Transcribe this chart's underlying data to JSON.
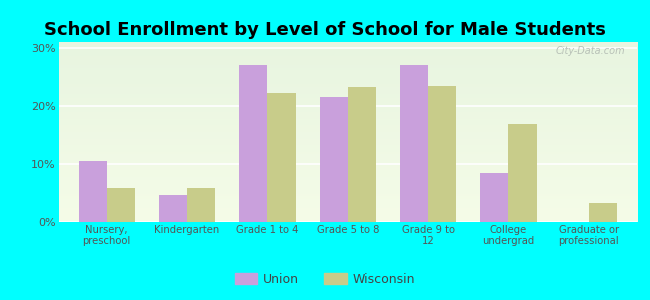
{
  "title": "School Enrollment by Level of School for Male Students",
  "categories": [
    "Nursery,\npreschool",
    "Kindergarten",
    "Grade 1 to 4",
    "Grade 5 to 8",
    "Grade 9 to\n12",
    "College\nundergrad",
    "Graduate or\nprofessional"
  ],
  "union_values": [
    10.5,
    4.7,
    27.0,
    21.5,
    27.0,
    8.5,
    0.0
  ],
  "wisconsin_values": [
    5.8,
    5.8,
    22.2,
    23.2,
    23.5,
    16.8,
    3.3
  ],
  "union_color": "#c9a0dc",
  "wisconsin_color": "#c8cc8a",
  "background_color": "#00ffff",
  "title_fontsize": 13,
  "ylabel_ticks": [
    "0%",
    "10%",
    "20%",
    "30%"
  ],
  "yticks": [
    0,
    10,
    20,
    30
  ],
  "ylim": [
    0,
    31
  ],
  "bar_width": 0.35,
  "legend_labels": [
    "Union",
    "Wisconsin"
  ],
  "watermark": "City-Data.com"
}
